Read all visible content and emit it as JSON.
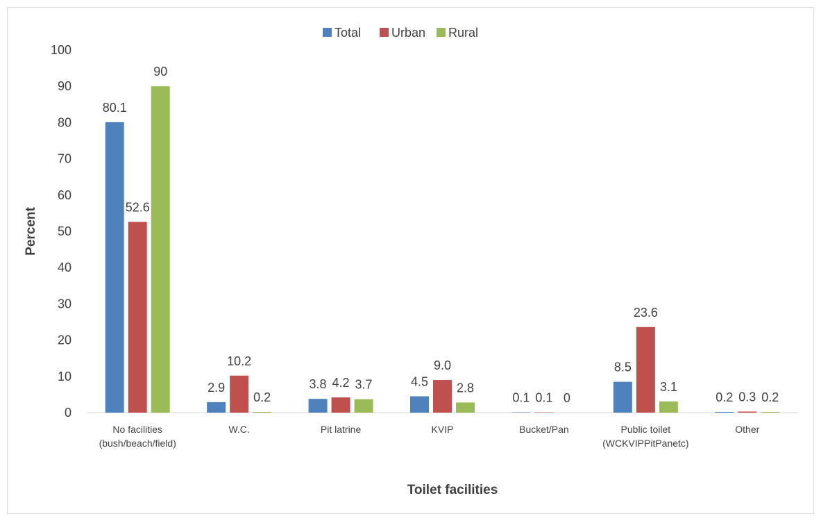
{
  "chart_data": {
    "type": "bar",
    "title": "",
    "xlabel": "Toilet facilities",
    "ylabel": "Percent",
    "ylim": [
      0,
      100
    ],
    "yticks": [
      0,
      10,
      20,
      30,
      40,
      50,
      60,
      70,
      80,
      90,
      100
    ],
    "grid": false,
    "legend_position": "top",
    "categories": [
      [
        "No facilities",
        "(bush/beach/field)"
      ],
      [
        "W.C."
      ],
      [
        "Pit latrine"
      ],
      [
        "KVIP"
      ],
      [
        "Bucket/Pan"
      ],
      [
        "Public toilet",
        "(WCKVIPPitPanetc)"
      ],
      [
        "Other"
      ]
    ],
    "series": [
      {
        "name": "Total",
        "color": "#4f81bd",
        "values": [
          80.1,
          2.9,
          3.8,
          4.5,
          0.1,
          8.5,
          0.2
        ],
        "labels": [
          "80.1",
          "2.9",
          "3.8",
          "4.5",
          "0.1",
          "8.5",
          "0.2"
        ]
      },
      {
        "name": "Urban",
        "color": "#c0504d",
        "values": [
          52.6,
          10.2,
          4.2,
          9.0,
          0.1,
          23.6,
          0.3
        ],
        "labels": [
          "52.6",
          "10.2",
          "4.2",
          "9.0",
          "0.1",
          "23.6",
          "0.3"
        ]
      },
      {
        "name": "Rural",
        "color": "#9bbb59",
        "values": [
          90,
          0.2,
          3.7,
          2.8,
          0,
          3.1,
          0.2
        ],
        "labels": [
          "90",
          "0.2",
          "3.7",
          "2.8",
          "0",
          "3.1",
          "0.2"
        ]
      }
    ]
  }
}
